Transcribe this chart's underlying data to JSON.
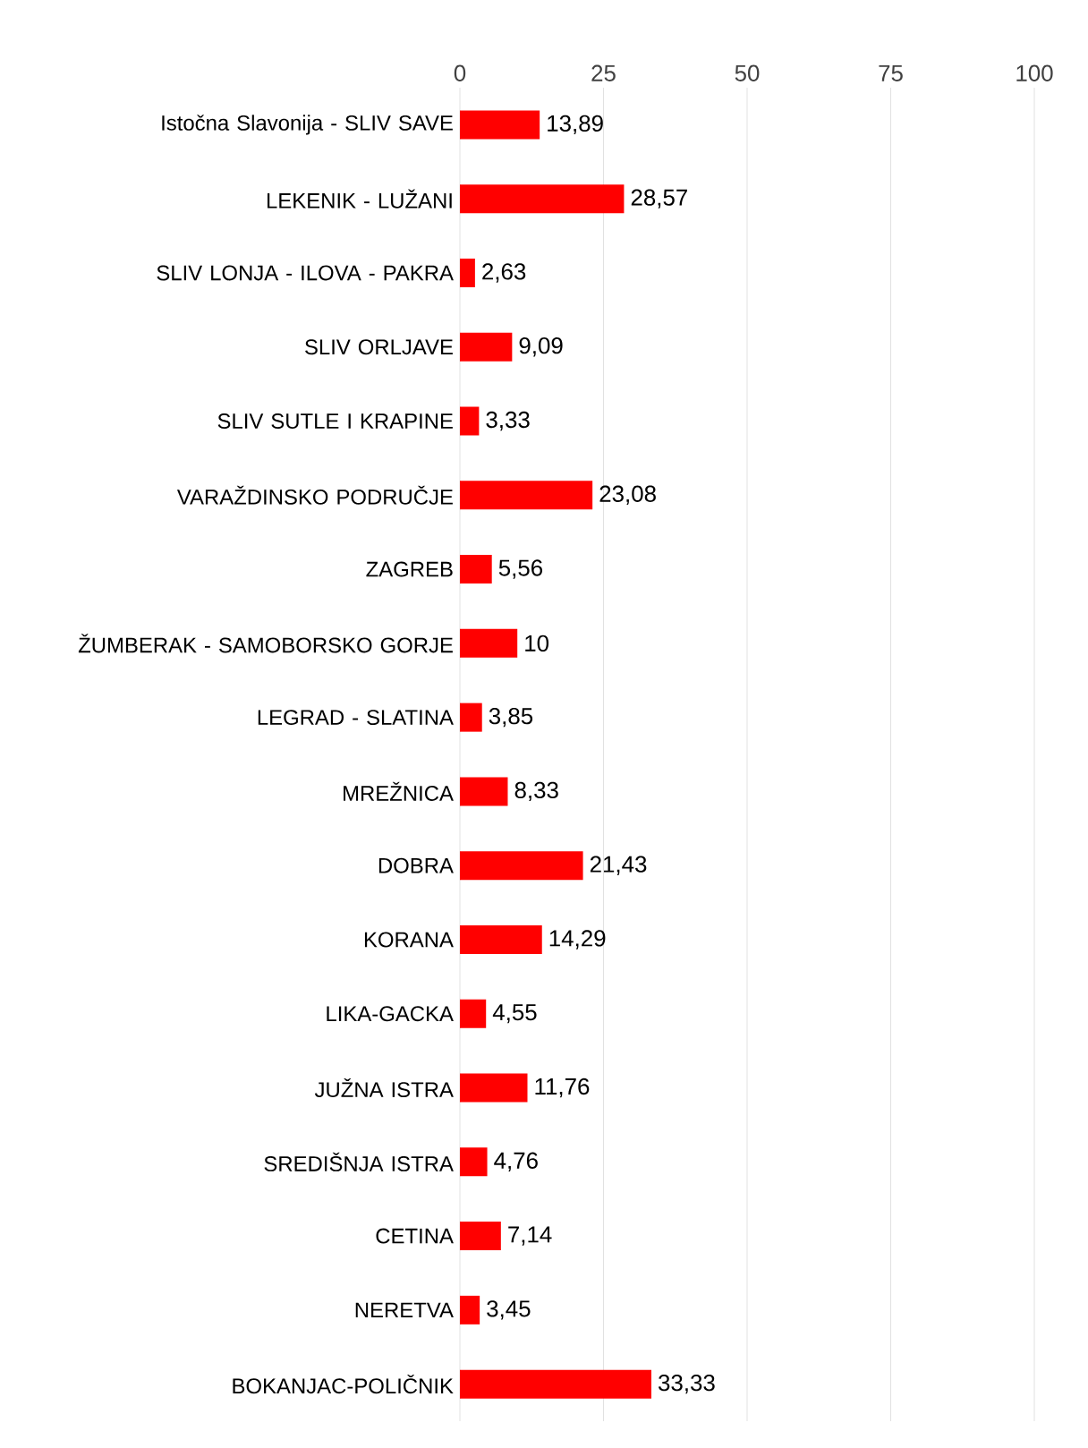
{
  "chart_data": {
    "type": "bar",
    "orientation": "horizontal",
    "categories": [
      "Istočna Slavonija - SLIV SAVE",
      "LEKENIK - LUŽANI",
      "SLIV LONJA - ILOVA - PAKRA",
      "SLIV ORLJAVE",
      "SLIV SUTLE I KRAPINE",
      "VARAŽDINSKO PODRUČJE",
      "ZAGREB",
      "ŽUMBERAK - SAMOBORSKO GORJE",
      "LEGRAD - SLATINA",
      "MREŽNICA",
      "DOBRA",
      "KORANA",
      "LIKA-GACKA",
      "JUŽNA ISTRA",
      "SREDIŠNJA ISTRA",
      "CETINA",
      "NERETVA",
      "BOKANJAC-POLIČNIK"
    ],
    "values": [
      13.89,
      28.57,
      2.63,
      9.09,
      3.33,
      23.08,
      5.56,
      10,
      3.85,
      8.33,
      21.43,
      14.29,
      4.55,
      11.76,
      4.76,
      7.14,
      3.45,
      33.33
    ],
    "value_labels": [
      "13,89",
      "28,57",
      "2,63",
      "9,09",
      "3,33",
      "23,08",
      "5,56",
      "10",
      "3,85",
      "8,33",
      "21,43",
      "14,29",
      "4,55",
      "11,76",
      "4,76",
      "7,14",
      "3,45",
      "33,33"
    ],
    "color": "#ff0000",
    "xlim": [
      0,
      100
    ],
    "xticks": [
      0,
      25,
      50,
      75,
      100
    ],
    "grid": "x"
  }
}
